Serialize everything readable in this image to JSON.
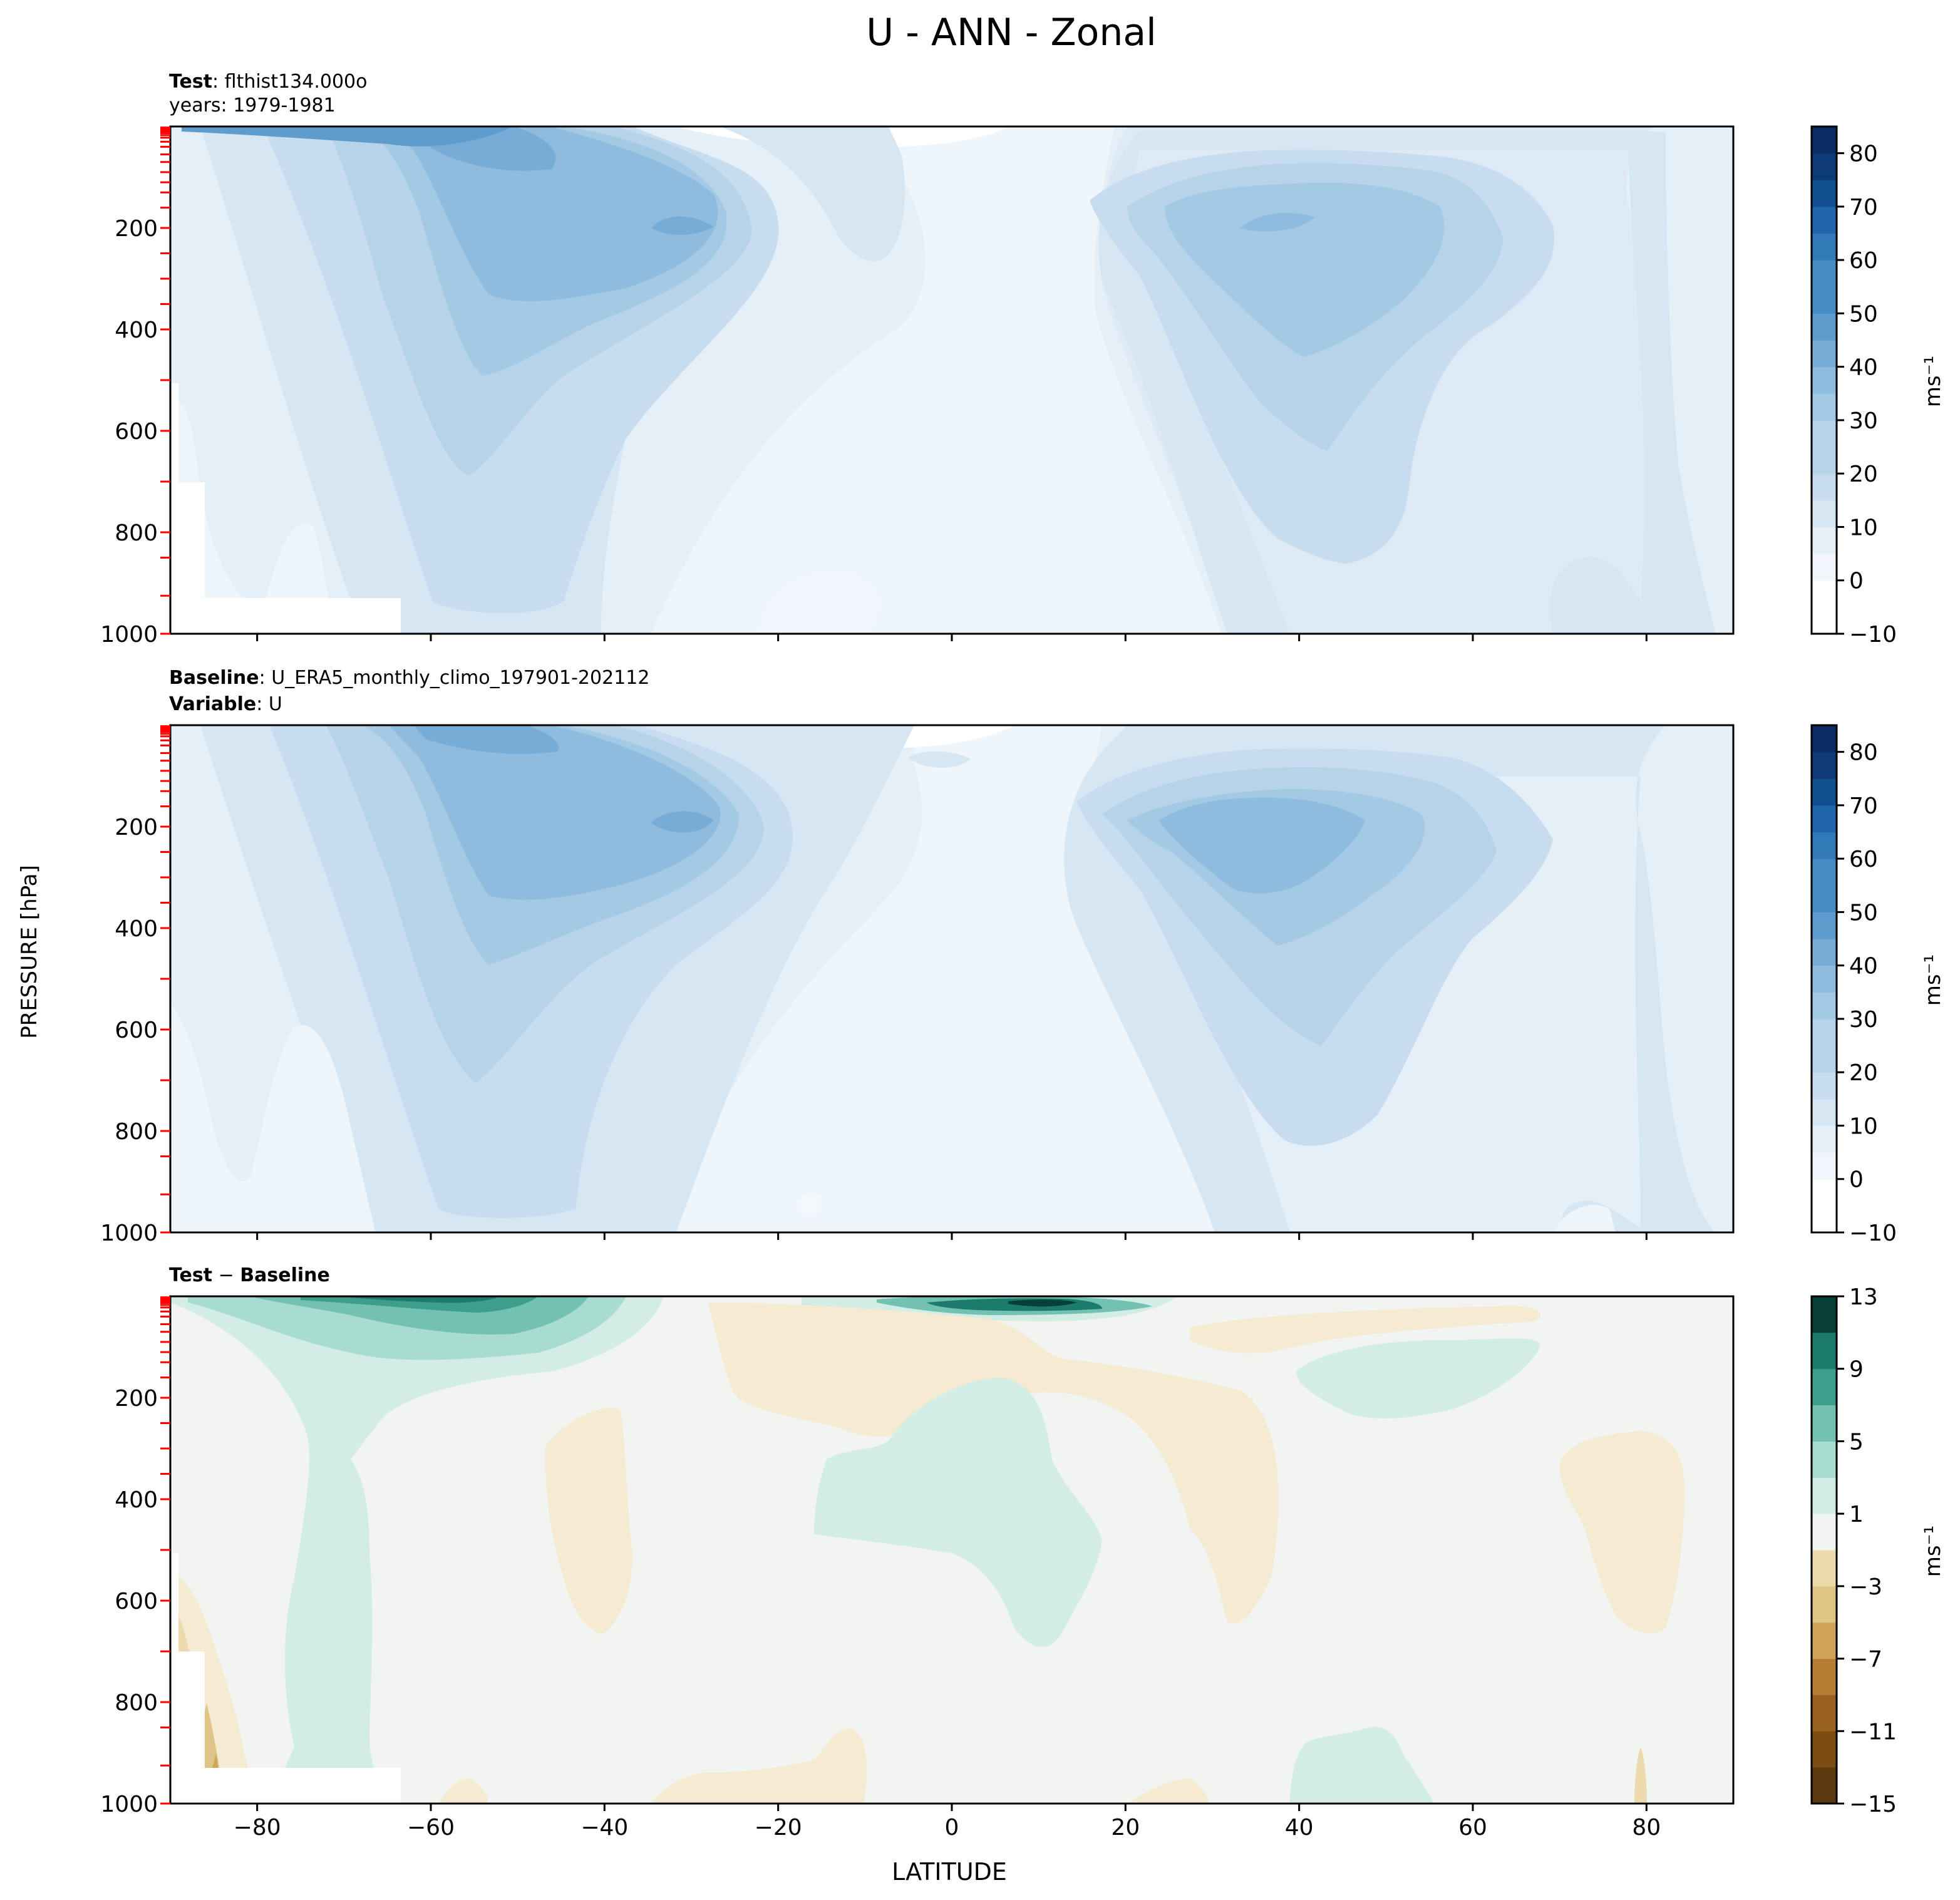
{
  "title": "U - ANN - Zonal",
  "ylabel": "PRESSURE [hPa]",
  "xlabel": "LATITUDE",
  "unit": "ms⁻¹",
  "panels": [
    {
      "id": "test",
      "line1_bold": "Test",
      "line1_text": ": flthist134.000o",
      "line2_text": "years: 1979-1981"
    },
    {
      "id": "baseline",
      "line1_bold": "Baseline",
      "line1_text": ": U_ERA5_monthly_climo_197901-202112",
      "line2_bold": "Variable",
      "line2_text": ": U"
    },
    {
      "id": "diff",
      "line1_bold": "Test",
      "line1_text": " − ",
      "line1_bold2": "Baseline"
    }
  ],
  "colors": {
    "blues": [
      "#ffffff",
      "#f0f6fc",
      "#e4eff8",
      "#d6e6f3",
      "#c8dcef",
      "#b6d3ea",
      "#a4c9e4",
      "#8fbbde",
      "#77acd6",
      "#5e9ccd",
      "#468cc4",
      "#3279b8",
      "#2065a9",
      "#124f90",
      "#0c3a75",
      "#082e63"
    ],
    "diverging_neg": [
      "#5c3a0d",
      "#7a4d13",
      "#98611e",
      "#b47e35",
      "#cfa45b",
      "#dfc585",
      "#ecdaad",
      "#f5ead2"
    ],
    "diverging_pos": [
      "#f2f4f2",
      "#d2ece6",
      "#a9dcd1",
      "#72c1b1",
      "#3d9e8e",
      "#1d7b6d",
      "#0a5c50",
      "#053f37"
    ],
    "neutral": "#f2f4f2",
    "marker_red": "#ff0000"
  },
  "chart_data": [
    {
      "type": "heatmap",
      "name": "Test",
      "x": [
        -90,
        90
      ],
      "y": [
        0,
        1000
      ],
      "xlim": [
        -90,
        90
      ],
      "ylim": [
        1000,
        0
      ],
      "xticks": [
        -80,
        -60,
        -40,
        -20,
        0,
        20,
        40,
        60,
        80
      ],
      "yticks": [
        200,
        400,
        600,
        800,
        1000
      ],
      "colorbar": {
        "levels": [
          -10,
          -5,
          0,
          5,
          10,
          15,
          20,
          25,
          30,
          35,
          40,
          45,
          50,
          55,
          60,
          65,
          70,
          75,
          80,
          85
        ],
        "ticks": [
          -10,
          0,
          10,
          20,
          30,
          40,
          50,
          60,
          70,
          80
        ],
        "label": "ms⁻¹"
      },
      "features": [
        {
          "desc": "SH jet max",
          "lat": -33,
          "pressure": 200,
          "u": 40
        },
        {
          "desc": "NH jet max",
          "lat": 37,
          "pressure": 200,
          "u": 30
        },
        {
          "desc": "SH upper jet",
          "lat": -55,
          "pressure": 20,
          "u": 40
        }
      ]
    },
    {
      "type": "heatmap",
      "name": "Baseline",
      "x": [
        -90,
        90
      ],
      "y": [
        0,
        1000
      ],
      "xlim": [
        -90,
        90
      ],
      "ylim": [
        1000,
        0
      ],
      "xticks": [
        -80,
        -60,
        -40,
        -20,
        0,
        20,
        40,
        60,
        80
      ],
      "yticks": [
        200,
        400,
        600,
        800,
        1000
      ],
      "colorbar": {
        "levels": [
          -10,
          -5,
          0,
          5,
          10,
          15,
          20,
          25,
          30,
          35,
          40,
          45,
          50,
          55,
          60,
          65,
          70,
          75,
          80,
          85
        ],
        "ticks": [
          -10,
          0,
          10,
          20,
          30,
          40,
          50,
          60,
          70,
          80
        ],
        "label": "ms⁻¹"
      },
      "features": [
        {
          "desc": "SH jet max",
          "lat": -32,
          "pressure": 200,
          "u": 40
        },
        {
          "desc": "NH jet max",
          "lat": 37,
          "pressure": 200,
          "u": 35
        }
      ]
    },
    {
      "type": "heatmap",
      "name": "Test − Baseline",
      "x": [
        -90,
        90
      ],
      "y": [
        0,
        1000
      ],
      "xlim": [
        -90,
        90
      ],
      "ylim": [
        1000,
        0
      ],
      "xticks": [
        -80,
        -60,
        -40,
        -20,
        0,
        20,
        40,
        60,
        80
      ],
      "yticks": [
        200,
        400,
        600,
        800,
        1000
      ],
      "colorbar": {
        "levels": [
          -15,
          -13,
          -11,
          -9,
          -7,
          -5,
          -3,
          -1,
          1,
          3,
          5,
          7,
          9,
          11,
          13
        ],
        "ticks": [
          -15,
          -11,
          -7,
          -3,
          1,
          5,
          9,
          13
        ],
        "label": "ms⁻¹"
      },
      "features": [
        {
          "desc": "positive upper SH",
          "lat": -50,
          "pressure": 20,
          "u": 7
        },
        {
          "desc": "positive upper equatorial",
          "lat": 10,
          "pressure": 10,
          "u": 11
        },
        {
          "desc": "positive tropics",
          "lat": 5,
          "pressure": 350,
          "u": 2
        },
        {
          "desc": "negative subtropics NH",
          "lat": 25,
          "pressure": 250,
          "u": -2
        }
      ]
    }
  ]
}
